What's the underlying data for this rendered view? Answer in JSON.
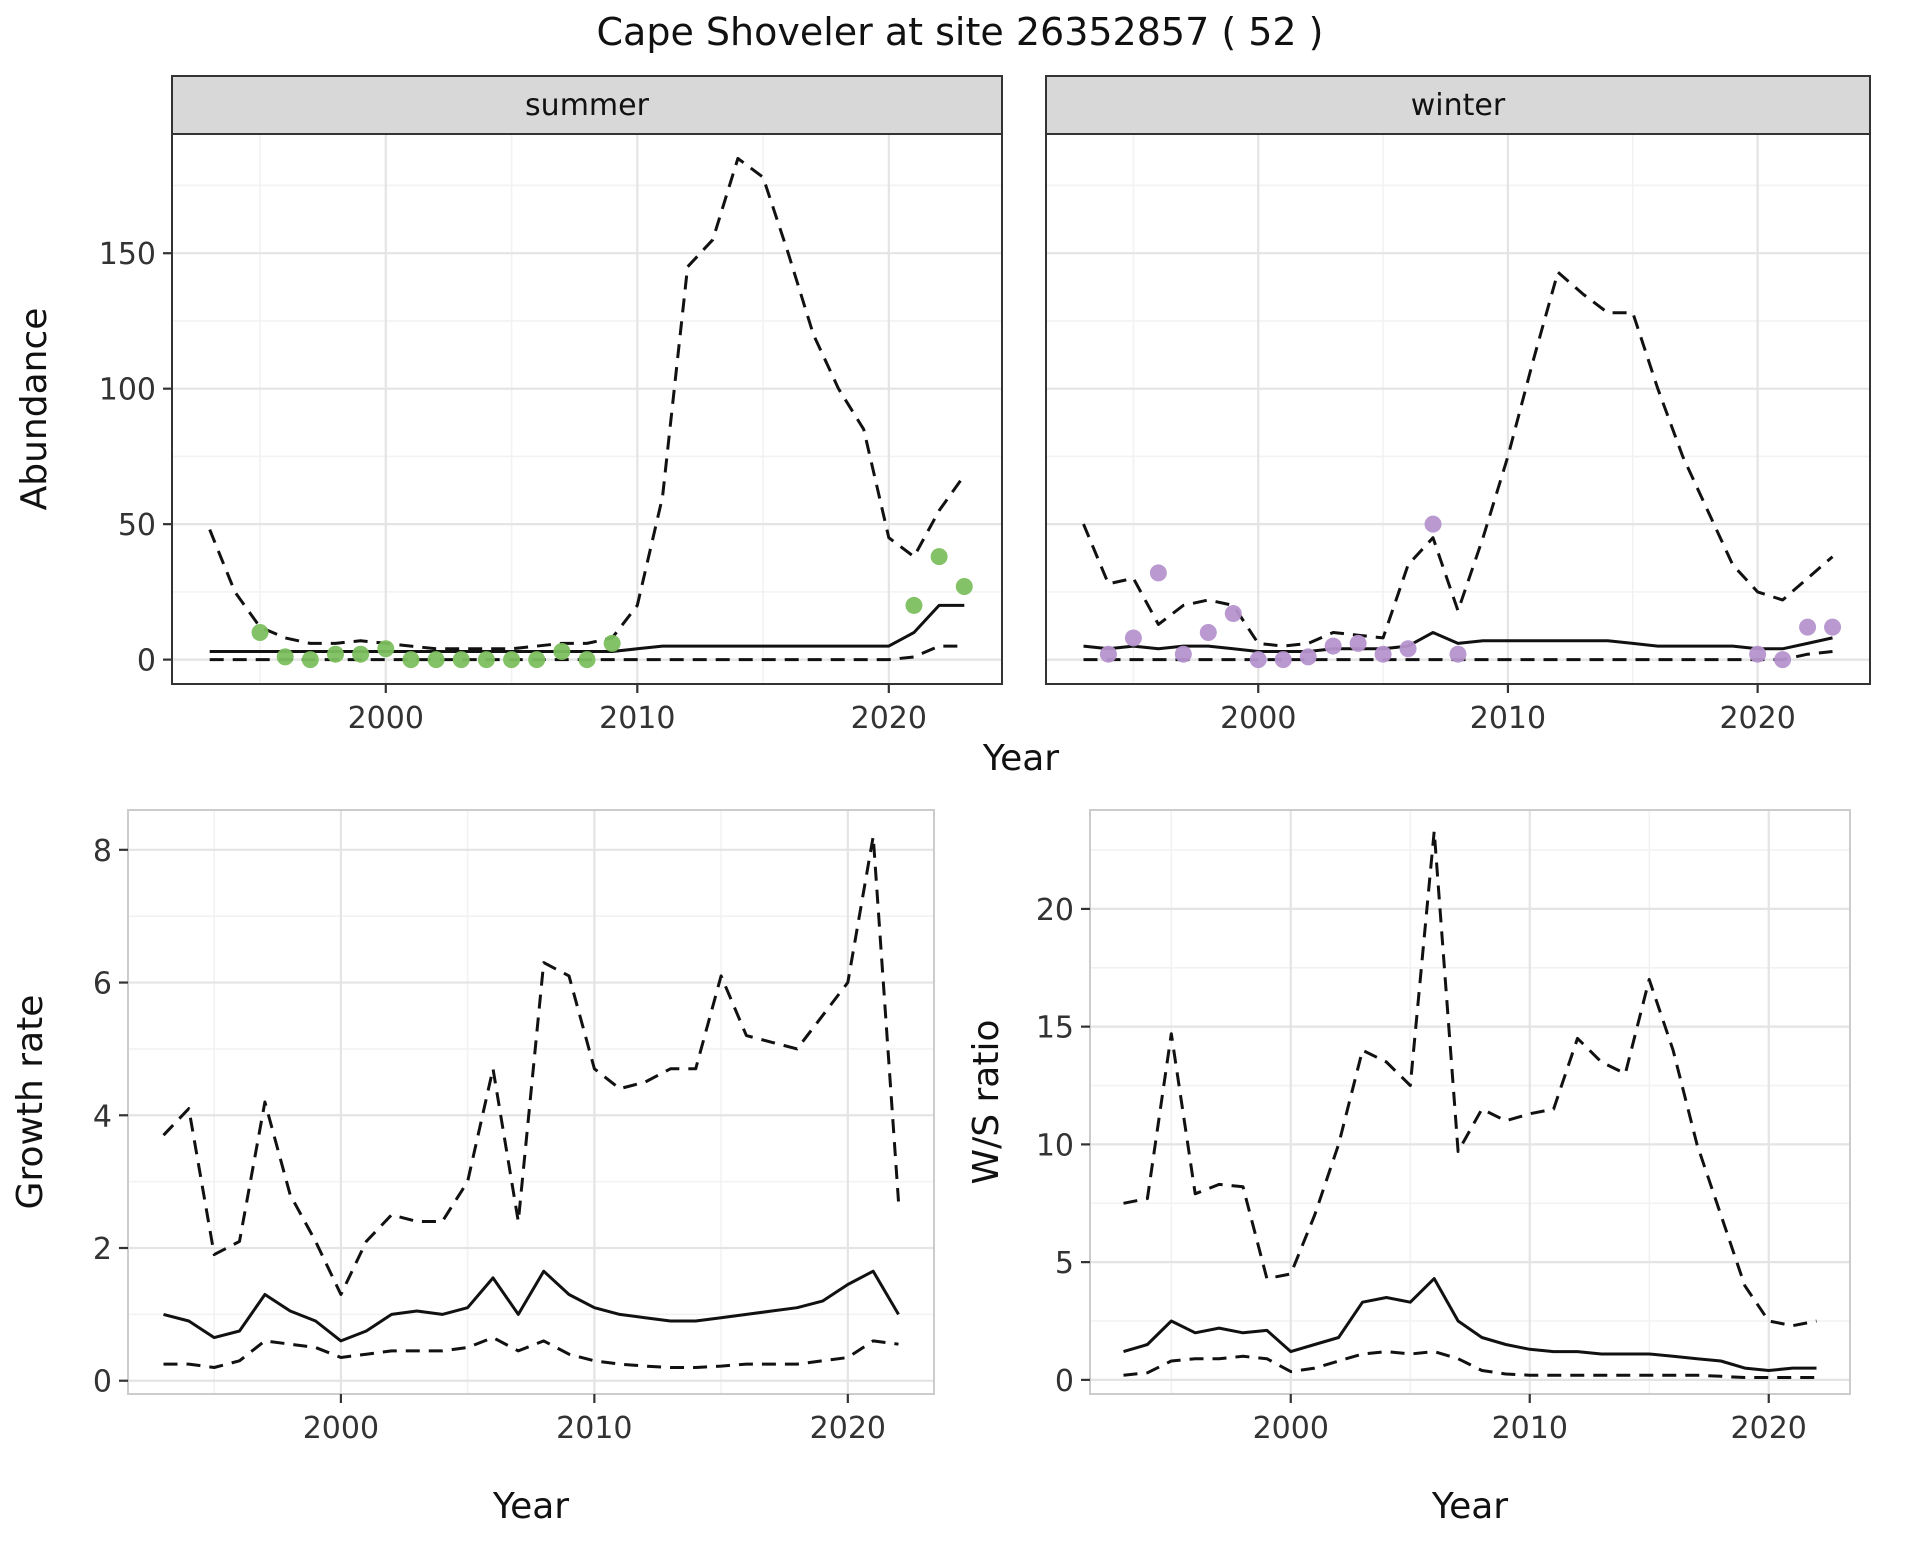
{
  "title": "Cape Shoveler at site 26352857 ( 52 )",
  "abundance_xlabel": "Year",
  "colors": {
    "summer_points": "#7cbf5e",
    "winter_points": "#b593cd",
    "line": "#111111",
    "strip_fill": "#d8d8d8",
    "grid_major": "#e4e4e4",
    "grid_minor": "#f2f2f2"
  },
  "chart_data": [
    {
      "id": "abundance-summer",
      "type": "line",
      "facet_label": "summer",
      "ylabel": "Abundance",
      "xlabel": "",
      "xlim": [
        1991.5,
        2024.5
      ],
      "ylim": [
        -9,
        194
      ],
      "xticks": [
        2000,
        2010,
        2020
      ],
      "yticks": [
        0,
        50,
        100,
        150
      ],
      "xminor": [
        1995,
        2005,
        2015
      ],
      "yminor": [
        25,
        75,
        125,
        175
      ],
      "show_ytick_labels": true,
      "panel_border": "#333333",
      "series": [
        {
          "name": "upper-ci",
          "style": "dashed",
          "x": {
            "from": 1993
          },
          "y": [
            48,
            25,
            12,
            8,
            6,
            6,
            7,
            6,
            5,
            4,
            4,
            4,
            4,
            5,
            6,
            6,
            8,
            20,
            60,
            145,
            155,
            185,
            178,
            150,
            120,
            100,
            85,
            45,
            38,
            55,
            68
          ]
        },
        {
          "name": "estimate",
          "style": "solid",
          "x": {
            "from": 1993
          },
          "y": [
            3,
            3,
            3,
            3,
            3,
            3,
            3,
            3,
            3,
            3,
            3,
            3,
            3,
            3,
            3,
            3,
            3,
            4,
            5,
            5,
            5,
            5,
            5,
            5,
            5,
            5,
            5,
            5,
            10,
            20,
            20
          ]
        },
        {
          "name": "lower-ci",
          "style": "dashed",
          "x": {
            "from": 1993
          },
          "y": [
            0,
            0,
            0,
            0,
            0,
            0,
            0,
            0,
            0,
            0,
            0,
            0,
            0,
            0,
            0,
            0,
            0,
            0,
            0,
            0,
            0,
            0,
            0,
            0,
            0,
            0,
            0,
            0,
            1,
            5,
            5
          ]
        },
        {
          "name": "observed-counts",
          "style": "points",
          "color": "#7cbf5e",
          "x": [
            1995,
            1996,
            1997,
            1998,
            1999,
            2000,
            2001,
            2002,
            2003,
            2004,
            2005,
            2006,
            2007,
            2008,
            2009,
            2021,
            2022,
            2023
          ],
          "y": [
            10,
            1,
            0,
            2,
            2,
            4,
            0,
            0,
            0,
            0,
            0,
            0,
            3,
            0,
            6,
            20,
            38,
            27
          ]
        }
      ]
    },
    {
      "id": "abundance-winter",
      "type": "line",
      "facet_label": "winter",
      "ylabel": "",
      "xlabel": "",
      "xlim": [
        1991.5,
        2024.5
      ],
      "ylim": [
        -9,
        194
      ],
      "xticks": [
        2000,
        2010,
        2020
      ],
      "yticks": [
        0,
        50,
        100,
        150
      ],
      "xminor": [
        1995,
        2005,
        2015
      ],
      "yminor": [
        25,
        75,
        125,
        175
      ],
      "show_ytick_labels": false,
      "panel_border": "#333333",
      "series": [
        {
          "name": "upper-ci",
          "style": "dashed",
          "x": {
            "from": 1993
          },
          "y": [
            50,
            28,
            30,
            13,
            20,
            22,
            20,
            6,
            5,
            6,
            10,
            9,
            8,
            35,
            45,
            18,
            45,
            75,
            110,
            143,
            135,
            128,
            128,
            100,
            75,
            55,
            35,
            25,
            22,
            30,
            38
          ]
        },
        {
          "name": "estimate",
          "style": "solid",
          "x": {
            "from": 1993
          },
          "y": [
            5,
            4,
            5,
            4,
            5,
            5,
            4,
            3,
            3,
            3,
            4,
            4,
            4,
            5,
            10,
            6,
            7,
            7,
            7,
            7,
            7,
            7,
            6,
            5,
            5,
            5,
            5,
            4,
            4,
            6,
            8
          ]
        },
        {
          "name": "lower-ci",
          "style": "dashed",
          "x": {
            "from": 1993
          },
          "y": [
            0,
            0,
            0,
            0,
            0,
            0,
            0,
            0,
            0,
            0,
            0,
            0,
            0,
            0,
            0,
            0,
            0,
            0,
            0,
            0,
            0,
            0,
            0,
            0,
            0,
            0,
            0,
            0,
            0,
            2,
            3
          ]
        },
        {
          "name": "observed-counts",
          "style": "points",
          "color": "#b593cd",
          "x": [
            1994,
            1995,
            1996,
            1997,
            1998,
            1999,
            2000,
            2001,
            2002,
            2003,
            2004,
            2005,
            2006,
            2007,
            2008,
            2020,
            2021,
            2022,
            2023
          ],
          "y": [
            2,
            8,
            32,
            2,
            10,
            17,
            0,
            0,
            1,
            5,
            6,
            2,
            4,
            50,
            2,
            2,
            0,
            12,
            12
          ]
        }
      ]
    },
    {
      "id": "growth-rate",
      "type": "line",
      "facet_label": null,
      "ylabel": "Growth rate",
      "xlabel": "Year",
      "xlim": [
        1991.6,
        2023.4
      ],
      "ylim": [
        -0.2,
        8.6
      ],
      "xticks": [
        2000,
        2010,
        2020
      ],
      "yticks": [
        0,
        2,
        4,
        6,
        8
      ],
      "xminor": [
        1995,
        2005,
        2015
      ],
      "yminor": [
        1,
        3,
        5,
        7
      ],
      "show_ytick_labels": true,
      "panel_border": "#cccccc",
      "series": [
        {
          "name": "upper-ci",
          "style": "dashed",
          "x": {
            "from": 1993
          },
          "y": [
            3.7,
            4.1,
            1.9,
            2.1,
            4.2,
            2.8,
            2.1,
            1.3,
            2.1,
            2.5,
            2.4,
            2.4,
            3.0,
            4.7,
            2.4,
            6.3,
            6.1,
            4.7,
            4.4,
            4.5,
            4.7,
            4.7,
            6.1,
            5.2,
            5.1,
            5.0,
            5.5,
            6.0,
            8.2,
            2.7
          ]
        },
        {
          "name": "estimate",
          "style": "solid",
          "x": {
            "from": 1993
          },
          "y": [
            1.0,
            0.9,
            0.65,
            0.75,
            1.3,
            1.05,
            0.9,
            0.6,
            0.75,
            1.0,
            1.05,
            1.0,
            1.1,
            1.55,
            1.0,
            1.65,
            1.3,
            1.1,
            1.0,
            0.95,
            0.9,
            0.9,
            0.95,
            1.0,
            1.05,
            1.1,
            1.2,
            1.45,
            1.65,
            1.0
          ]
        },
        {
          "name": "lower-ci",
          "style": "dashed",
          "x": {
            "from": 1993
          },
          "y": [
            0.25,
            0.25,
            0.2,
            0.3,
            0.6,
            0.55,
            0.5,
            0.35,
            0.4,
            0.45,
            0.45,
            0.45,
            0.5,
            0.65,
            0.45,
            0.6,
            0.4,
            0.3,
            0.25,
            0.22,
            0.2,
            0.2,
            0.22,
            0.25,
            0.25,
            0.25,
            0.3,
            0.35,
            0.6,
            0.55
          ]
        }
      ]
    },
    {
      "id": "ws-ratio",
      "type": "line",
      "facet_label": null,
      "ylabel": "W/S ratio",
      "xlabel": "Year",
      "xlim": [
        1991.6,
        2023.4
      ],
      "ylim": [
        -0.6,
        24.2
      ],
      "xticks": [
        2000,
        2010,
        2020
      ],
      "yticks": [
        0,
        5,
        10,
        15,
        20
      ],
      "xminor": [
        1995,
        2005,
        2015
      ],
      "yminor": [
        2.5,
        7.5,
        12.5,
        17.5,
        22.5
      ],
      "show_ytick_labels": true,
      "panel_border": "#cccccc",
      "series": [
        {
          "name": "upper-ci",
          "style": "dashed",
          "x": {
            "from": 1993
          },
          "y": [
            7.5,
            7.7,
            14.7,
            7.9,
            8.3,
            8.2,
            4.3,
            4.5,
            7.0,
            10.0,
            14.0,
            13.5,
            12.5,
            23.3,
            9.7,
            11.5,
            11.0,
            11.3,
            11.5,
            14.5,
            13.5,
            13.0,
            17.0,
            14.0,
            10.0,
            7.0,
            4.0,
            2.5,
            2.3,
            2.5
          ]
        },
        {
          "name": "estimate",
          "style": "solid",
          "x": {
            "from": 1993
          },
          "y": [
            1.2,
            1.5,
            2.5,
            2.0,
            2.2,
            2.0,
            2.1,
            1.2,
            1.5,
            1.8,
            3.3,
            3.5,
            3.3,
            4.3,
            2.5,
            1.8,
            1.5,
            1.3,
            1.2,
            1.2,
            1.1,
            1.1,
            1.1,
            1.0,
            0.9,
            0.8,
            0.5,
            0.4,
            0.5,
            0.5
          ]
        },
        {
          "name": "lower-ci",
          "style": "dashed",
          "x": {
            "from": 1993
          },
          "y": [
            0.2,
            0.3,
            0.8,
            0.9,
            0.9,
            1.0,
            0.9,
            0.35,
            0.5,
            0.8,
            1.1,
            1.2,
            1.1,
            1.2,
            0.9,
            0.4,
            0.25,
            0.2,
            0.2,
            0.2,
            0.2,
            0.2,
            0.2,
            0.2,
            0.2,
            0.15,
            0.1,
            0.1,
            0.1,
            0.1
          ]
        }
      ]
    }
  ]
}
